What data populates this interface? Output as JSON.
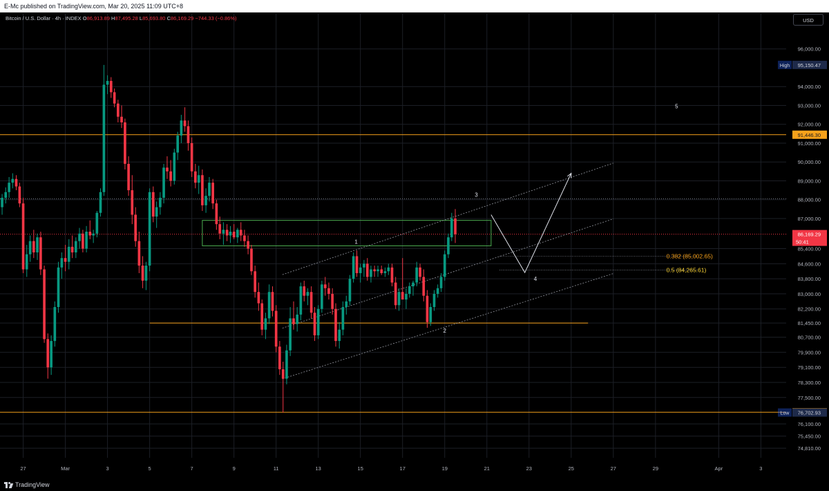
{
  "header": {
    "published": "E-Mc published on TradingView.com, Mar 20, 2025 11:09 UTC+8"
  },
  "legend": {
    "symbol": "Bitcoin / U.S. Dollar · 4h · INDEX",
    "o_label": "O",
    "o": "86,913.89",
    "h_label": "H",
    "h": "87,495.28",
    "l_label": "L",
    "l": "85,693.80",
    "c_label": "C",
    "c": "86,169.29",
    "change": "−744.33 (−0.86%)"
  },
  "currency_button": "USD",
  "footer": {
    "brand": "TradingView"
  },
  "colors": {
    "up": "#089981",
    "down": "#f23645",
    "level": "#f7a21b",
    "box": "#4caf50",
    "axis_text": "#b2b5be",
    "grid": "#1c1f26"
  },
  "chart_data": {
    "type": "candlestick",
    "title": "Bitcoin / U.S. Dollar · 4h · INDEX",
    "x_tick_labels": [
      "27",
      "Mar",
      "3",
      "5",
      "7",
      "9",
      "11",
      "13",
      "15",
      "17",
      "19",
      "21",
      "23",
      "25",
      "27",
      "29",
      "Apr",
      "3"
    ],
    "x_tick_days": [
      -2,
      0,
      2,
      4,
      6,
      8,
      10,
      12,
      14,
      16,
      18,
      20,
      22,
      24,
      26,
      28,
      31,
      33
    ],
    "xlim_days": [
      -3.1,
      34.2
    ],
    "y_ticks": [
      96000,
      95150.47,
      94000,
      93000,
      92000,
      91446.3,
      91000,
      90000,
      89000,
      88000,
      87000,
      86169.29,
      85400,
      84600,
      83800,
      83000,
      82200,
      81450,
      80700,
      79900,
      79100,
      78300,
      77500,
      76717.05,
      76702.93,
      76100,
      75450,
      74810
    ],
    "y_tick_labels": [
      "96,000.00",
      "95,150.47",
      "94,000.00",
      "93,000.00",
      "92,000.00",
      "91,446.30",
      "91,000.00",
      "90,000.00",
      "89,000.00",
      "88,000.00",
      "87,000.00",
      "86,169.29",
      "85,400.00",
      "84,600.00",
      "83,800.00",
      "83,000.00",
      "82,200.00",
      "81,450.00",
      "80,700.00",
      "79,900.00",
      "79,100.00",
      "78,300.00",
      "77,500.00",
      "76,717.05",
      "76,702.93",
      "76,100.00",
      "75,450.00",
      "74,810.00"
    ],
    "ylim": [
      74300,
      97200
    ],
    "high": {
      "label": "High",
      "value": 95150.47
    },
    "low": {
      "label": "Low",
      "value": 76702.93
    },
    "current_price": {
      "value": 86169.29,
      "label": "86,169.29",
      "countdown": "50:41"
    },
    "horizontal_levels": [
      {
        "value": 91446.3,
        "label": "91,446.30",
        "from_day": -3.1,
        "to_day": 34.2,
        "color": "#f7a21b"
      },
      {
        "value": 76717.05,
        "label": "76,717.05",
        "from_day": -3.1,
        "to_day": 34.2,
        "color": "#f7a21b"
      },
      {
        "value": 81450,
        "from_day": 4.0,
        "to_day": 24.8,
        "color": "#f7a21b"
      }
    ],
    "dotted_levels": [
      {
        "value": 88050
      },
      {
        "value": 86169.29
      }
    ],
    "fib_levels": [
      {
        "ratio": "0.382",
        "value": 85002.65,
        "text": "0.382 (85,002.65)",
        "from_day": 20.6,
        "to_day": 30.0,
        "color": "#f7a21b"
      },
      {
        "ratio": "0.5",
        "value": 84265.61,
        "text": "0.5 (84,265.61)",
        "from_day": 20.6,
        "to_day": 30.0,
        "color": "#fcd535"
      }
    ],
    "rectangle": {
      "day1": 6.5,
      "day2": 20.2,
      "price1": 86900,
      "price2": 85550
    },
    "channel_lines": [
      {
        "p1": [
          10.3,
          84020
        ],
        "p2": [
          26.0,
          89940
        ]
      },
      {
        "p1": [
          10.3,
          81180
        ],
        "p2": [
          26.0,
          86980
        ]
      },
      {
        "p1": [
          10.3,
          78490
        ],
        "p2": [
          26.0,
          84080
        ]
      }
    ],
    "projection_path": [
      [
        20.2,
        87200
      ],
      [
        21.8,
        84130
      ],
      [
        24.0,
        89400
      ]
    ],
    "wave_labels": [
      {
        "text": "1",
        "day": 13.8,
        "price": 85650
      },
      {
        "text": "2",
        "day": 18.0,
        "price": 80950
      },
      {
        "text": "3",
        "day": 19.5,
        "price": 88150
      },
      {
        "text": "4",
        "day": 22.3,
        "price": 83700
      },
      {
        "text": "5",
        "day": 29.0,
        "price": 92850
      }
    ],
    "candle_period_days": 0.1667,
    "candles": [
      [
        -3.0,
        87600,
        88300,
        87200,
        88100
      ],
      [
        -2.83,
        88100,
        88650,
        87800,
        88400
      ],
      [
        -2.67,
        88400,
        89200,
        88100,
        88900
      ],
      [
        -2.5,
        88900,
        89400,
        88600,
        89100
      ],
      [
        -2.33,
        89100,
        89300,
        88500,
        88700
      ],
      [
        -2.17,
        88700,
        88900,
        87600,
        87800
      ],
      [
        -2.0,
        87800,
        88100,
        84100,
        84300
      ],
      [
        -1.83,
        84300,
        85600,
        83900,
        85100
      ],
      [
        -1.67,
        85100,
        86100,
        84700,
        85800
      ],
      [
        -1.5,
        85800,
        86400,
        84900,
        85200
      ],
      [
        -1.33,
        85200,
        86200,
        84800,
        86000
      ],
      [
        -1.17,
        86000,
        86300,
        84000,
        84300
      ],
      [
        -1.0,
        84300,
        84500,
        80400,
        80600
      ],
      [
        -0.83,
        80600,
        80900,
        78500,
        79100
      ],
      [
        -0.67,
        79100,
        80800,
        78700,
        80500
      ],
      [
        -0.5,
        80500,
        82600,
        80200,
        82300
      ],
      [
        -0.33,
        82300,
        84700,
        82000,
        84400
      ],
      [
        -0.17,
        84400,
        85200,
        83800,
        84900
      ],
      [
        0.0,
        84900,
        85600,
        84200,
        84700
      ],
      [
        0.17,
        84700,
        85900,
        84300,
        85500
      ],
      [
        0.33,
        85500,
        86100,
        84900,
        85200
      ],
      [
        0.5,
        85200,
        86000,
        84900,
        85800
      ],
      [
        0.67,
        85800,
        86500,
        85400,
        86200
      ],
      [
        0.83,
        86200,
        86400,
        85200,
        85400
      ],
      [
        1.0,
        85400,
        86600,
        85200,
        86300
      ],
      [
        1.17,
        86300,
        86900,
        85900,
        86100
      ],
      [
        1.33,
        86100,
        86400,
        85700,
        86200
      ],
      [
        1.5,
        86200,
        87400,
        86000,
        87300
      ],
      [
        1.67,
        87300,
        88600,
        87100,
        88400
      ],
      [
        1.83,
        88400,
        95150,
        88200,
        94100
      ],
      [
        2.0,
        94100,
        94600,
        93600,
        94300
      ],
      [
        2.17,
        94300,
        94500,
        93400,
        93700
      ],
      [
        2.33,
        93700,
        93900,
        92900,
        93100
      ],
      [
        2.5,
        93100,
        93300,
        92100,
        92400
      ],
      [
        2.67,
        92400,
        93000,
        91800,
        92100
      ],
      [
        2.83,
        92100,
        92300,
        89600,
        89900
      ],
      [
        3.0,
        89900,
        90300,
        88200,
        88500
      ],
      [
        3.17,
        88500,
        89300,
        86700,
        87200
      ],
      [
        3.33,
        87200,
        87600,
        85500,
        85800
      ],
      [
        3.5,
        85800,
        86300,
        84100,
        84500
      ],
      [
        3.67,
        84500,
        85000,
        83300,
        83700
      ],
      [
        3.83,
        83700,
        84700,
        83200,
        84500
      ],
      [
        4.0,
        84500,
        88600,
        84200,
        88400
      ],
      [
        4.17,
        88400,
        88700,
        86800,
        87100
      ],
      [
        4.33,
        87100,
        87900,
        86500,
        87600
      ],
      [
        4.5,
        87600,
        88400,
        87200,
        88100
      ],
      [
        4.67,
        88100,
        89900,
        87800,
        89700
      ],
      [
        4.83,
        89700,
        90300,
        89100,
        89500
      ],
      [
        5.0,
        89500,
        90100,
        88700,
        89000
      ],
      [
        5.17,
        89000,
        90700,
        88800,
        90500
      ],
      [
        5.33,
        90500,
        91600,
        90100,
        91400
      ],
      [
        5.5,
        91400,
        92500,
        91000,
        92200
      ],
      [
        5.67,
        92200,
        92900,
        91600,
        91900
      ],
      [
        5.83,
        91900,
        92200,
        90600,
        91000
      ],
      [
        6.0,
        91000,
        91300,
        89200,
        89500
      ],
      [
        6.17,
        89500,
        89900,
        88600,
        88900
      ],
      [
        6.33,
        88900,
        89800,
        88300,
        89300
      ],
      [
        6.5,
        89300,
        89600,
        87400,
        87700
      ],
      [
        6.67,
        87700,
        88600,
        87300,
        88200
      ],
      [
        6.83,
        88200,
        89200,
        87900,
        88900
      ],
      [
        7.0,
        88900,
        89100,
        87500,
        87800
      ],
      [
        7.17,
        87800,
        88000,
        86400,
        86700
      ],
      [
        7.33,
        86700,
        87100,
        85900,
        86200
      ],
      [
        7.5,
        86200,
        86800,
        85600,
        86400
      ],
      [
        7.67,
        86400,
        86700,
        85800,
        86100
      ],
      [
        7.83,
        86100,
        86600,
        85700,
        86300
      ],
      [
        8.0,
        86300,
        86700,
        85900,
        86000
      ],
      [
        8.17,
        86000,
        86500,
        85700,
        86400
      ],
      [
        8.33,
        86400,
        86800,
        85800,
        86100
      ],
      [
        8.5,
        86100,
        86400,
        85500,
        85800
      ],
      [
        8.67,
        85800,
        86100,
        85100,
        85400
      ],
      [
        8.83,
        85400,
        85600,
        84000,
        84200
      ],
      [
        9.0,
        84200,
        84500,
        82800,
        83100
      ],
      [
        9.17,
        83100,
        83600,
        82100,
        82500
      ],
      [
        9.33,
        82500,
        82700,
        80800,
        81100
      ],
      [
        9.5,
        81100,
        82000,
        80600,
        81700
      ],
      [
        9.67,
        81700,
        83500,
        81400,
        83100
      ],
      [
        9.83,
        83100,
        83400,
        81800,
        82100
      ],
      [
        10.0,
        82100,
        82400,
        79900,
        80200
      ],
      [
        10.17,
        80200,
        80500,
        78700,
        79000
      ],
      [
        10.33,
        79000,
        79400,
        76700,
        78500
      ],
      [
        10.5,
        78500,
        80300,
        78200,
        80000
      ],
      [
        10.67,
        80000,
        82300,
        79700,
        81700
      ],
      [
        10.83,
        81700,
        82600,
        81100,
        81400
      ],
      [
        11.0,
        81400,
        82300,
        81000,
        81900
      ],
      [
        11.17,
        81900,
        83600,
        81600,
        83400
      ],
      [
        11.33,
        83400,
        83700,
        82600,
        82900
      ],
      [
        11.5,
        82900,
        83300,
        82400,
        83100
      ],
      [
        11.67,
        83100,
        83400,
        81700,
        82000
      ],
      [
        11.83,
        82000,
        82300,
        80500,
        80800
      ],
      [
        12.0,
        80800,
        82400,
        80600,
        82200
      ],
      [
        12.17,
        82200,
        83700,
        82000,
        83500
      ],
      [
        12.33,
        83500,
        83900,
        82900,
        83300
      ],
      [
        12.5,
        83300,
        83600,
        82700,
        83000
      ],
      [
        12.67,
        83000,
        83300,
        81900,
        82200
      ],
      [
        12.83,
        82200,
        82500,
        80200,
        80500
      ],
      [
        13.0,
        80500,
        81500,
        80100,
        81100
      ],
      [
        13.17,
        81100,
        82600,
        80800,
        82300
      ],
      [
        13.33,
        82300,
        82900,
        81900,
        82600
      ],
      [
        13.5,
        82600,
        84000,
        82400,
        83800
      ],
      [
        13.67,
        83800,
        85200,
        83600,
        85000
      ],
      [
        13.83,
        85000,
        85300,
        83900,
        84100
      ],
      [
        14.0,
        84100,
        84600,
        83600,
        84400
      ],
      [
        14.17,
        84400,
        84800,
        83900,
        84600
      ],
      [
        14.33,
        84600,
        84900,
        83700,
        83900
      ],
      [
        14.5,
        83900,
        84500,
        83600,
        84300
      ],
      [
        14.67,
        84300,
        84500,
        83900,
        84200
      ],
      [
        14.83,
        84200,
        84500,
        83900,
        84300
      ],
      [
        15.0,
        84300,
        84500,
        84000,
        84100
      ],
      [
        15.17,
        84100,
        84400,
        83900,
        84200
      ],
      [
        15.33,
        84200,
        84600,
        84000,
        84400
      ],
      [
        15.5,
        84400,
        84600,
        83400,
        83600
      ],
      [
        15.67,
        83600,
        83900,
        82200,
        82400
      ],
      [
        15.83,
        82400,
        83300,
        82100,
        83100
      ],
      [
        16.0,
        83100,
        84900,
        82800,
        82700
      ],
      [
        16.17,
        82700,
        83300,
        82200,
        83000
      ],
      [
        16.33,
        83000,
        83600,
        82800,
        83400
      ],
      [
        16.5,
        83400,
        83700,
        82900,
        83600
      ],
      [
        16.67,
        83600,
        84700,
        83400,
        84400
      ],
      [
        16.83,
        84400,
        84600,
        83700,
        83900
      ],
      [
        17.0,
        83900,
        84300,
        82600,
        82900
      ],
      [
        17.17,
        82900,
        83200,
        81200,
        81500
      ],
      [
        17.33,
        81500,
        82500,
        81300,
        82300
      ],
      [
        17.5,
        82300,
        83200,
        82100,
        83000
      ],
      [
        17.67,
        83000,
        83500,
        82800,
        83300
      ],
      [
        17.83,
        83300,
        84100,
        83100,
        83900
      ],
      [
        18.0,
        83900,
        85300,
        83700,
        85100
      ],
      [
        18.17,
        85100,
        86200,
        84900,
        86000
      ],
      [
        18.33,
        86000,
        87300,
        85800,
        87000
      ],
      [
        18.5,
        87000,
        87500,
        85700,
        86169
      ]
    ]
  }
}
